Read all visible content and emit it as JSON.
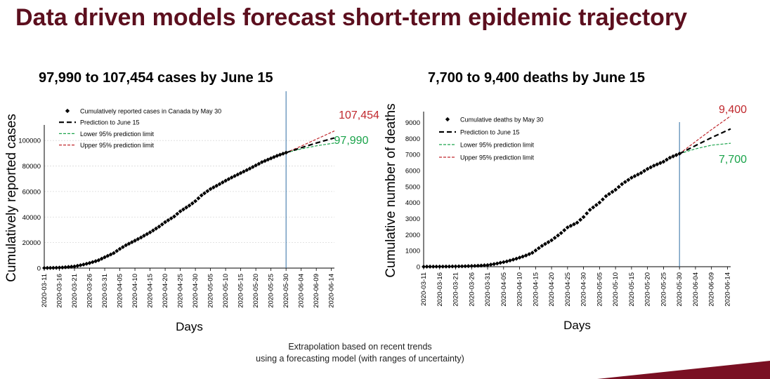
{
  "page": {
    "title": "Data driven models forecast short-term epidemic trajectory",
    "footnote_line1": "Extrapolation based on recent trends",
    "footnote_line2": "using a forecasting model (with ranges of uncertainty)"
  },
  "colors": {
    "title": "#5c0f1e",
    "observed": "#000000",
    "prediction": "#000000",
    "lower": "#1aa34a",
    "upper": "#c0282d",
    "divider": "#2e6da4",
    "accent_bar": "#7a1023"
  },
  "chart_data": [
    {
      "type": "scatter",
      "title": "97,990 to 107,454 cases by June 15",
      "xlabel": "Days",
      "ylabel": "Cumulatively reported cases",
      "ylim": [
        0,
        110000
      ],
      "yticks": [
        0,
        20000,
        40000,
        60000,
        80000,
        100000
      ],
      "x_ticks": [
        "2020-03-11",
        "2020-03-16",
        "2020-03-21",
        "2020-03-26",
        "2020-03-31",
        "2020-04-05",
        "2020-04-10",
        "2020-04-15",
        "2020-04-20",
        "2020-04-25",
        "2020-04-30",
        "2020-05-05",
        "2020-05-10",
        "2020-05-15",
        "2020-05-20",
        "2020-05-25",
        "2020-05-30",
        "2020-06-04",
        "2020-06-09",
        "2020-06-14"
      ],
      "x_start": "2020-03-11",
      "x_end": "2020-06-15",
      "forecast_start": "2020-05-30",
      "grid": true,
      "legend_position": "top-left",
      "legend": [
        "Cumulatively reported cases in Canada by May 30",
        "Prediction to June 15",
        "Lower 95% prediction limit",
        "Upper 95% prediction limit"
      ],
      "observed_points": [
        [
          "2020-03-11",
          100
        ],
        [
          "2020-03-14",
          200
        ],
        [
          "2020-03-17",
          500
        ],
        [
          "2020-03-21",
          1300
        ],
        [
          "2020-03-24",
          2800
        ],
        [
          "2020-03-26",
          4000
        ],
        [
          "2020-03-29",
          6200
        ],
        [
          "2020-03-31",
          8500
        ],
        [
          "2020-04-03",
          11800
        ],
        [
          "2020-04-05",
          15000
        ],
        [
          "2020-04-07",
          17900
        ],
        [
          "2020-04-10",
          21500
        ],
        [
          "2020-04-12",
          24000
        ],
        [
          "2020-04-15",
          28000
        ],
        [
          "2020-04-18",
          32500
        ],
        [
          "2020-04-20",
          36000
        ],
        [
          "2020-04-23",
          40500
        ],
        [
          "2020-04-25",
          44500
        ],
        [
          "2020-04-28",
          49000
        ],
        [
          "2020-04-30",
          52500
        ],
        [
          "2020-05-02",
          57000
        ],
        [
          "2020-05-05",
          62000
        ],
        [
          "2020-05-07",
          64500
        ],
        [
          "2020-05-10",
          68500
        ],
        [
          "2020-05-12",
          71000
        ],
        [
          "2020-05-15",
          74500
        ],
        [
          "2020-05-18",
          78000
        ],
        [
          "2020-05-20",
          80500
        ],
        [
          "2020-05-22",
          83000
        ],
        [
          "2020-05-25",
          86000
        ],
        [
          "2020-05-27",
          88000
        ],
        [
          "2020-05-30",
          90500
        ]
      ],
      "prediction": [
        [
          "2020-05-30",
          90500
        ],
        [
          "2020-06-04",
          94300
        ],
        [
          "2020-06-09",
          98000
        ],
        [
          "2020-06-15",
          102000
        ]
      ],
      "lower": [
        [
          "2020-05-30",
          90500
        ],
        [
          "2020-06-04",
          93400
        ],
        [
          "2020-06-09",
          95800
        ],
        [
          "2020-06-15",
          97990
        ]
      ],
      "upper": [
        [
          "2020-05-30",
          90500
        ],
        [
          "2020-06-04",
          95600
        ],
        [
          "2020-06-09",
          101000
        ],
        [
          "2020-06-15",
          107454
        ]
      ],
      "annotations": {
        "upper": "107,454",
        "lower": "97,990"
      }
    },
    {
      "type": "scatter",
      "title": "7,700 to 9,400 deaths by June 15",
      "xlabel": "Days",
      "ylabel": "Cumulative number of deaths",
      "ylim": [
        0,
        9500
      ],
      "yticks": [
        0,
        1000,
        2000,
        3000,
        4000,
        5000,
        6000,
        7000,
        8000,
        9000
      ],
      "x_ticks": [
        "2020-03-11",
        "2020-03-16",
        "2020-03-21",
        "2020-03-26",
        "2020-03-31",
        "2020-04-05",
        "2020-04-10",
        "2020-04-15",
        "2020-04-20",
        "2020-04-25",
        "2020-04-30",
        "2020-05-05",
        "2020-05-10",
        "2020-05-15",
        "2020-05-20",
        "2020-05-25",
        "2020-05-30",
        "2020-06-04",
        "2020-06-09",
        "2020-06-14"
      ],
      "x_start": "2020-03-11",
      "x_end": "2020-06-15",
      "forecast_start": "2020-05-30",
      "grid": false,
      "legend_position": "top-left",
      "legend": [
        "Cumulative deaths by May 30",
        "Prediction to June 15",
        "Lower 95% prediction limit",
        "Upper 95% prediction limit"
      ],
      "observed_points": [
        [
          "2020-03-11",
          2
        ],
        [
          "2020-03-18",
          10
        ],
        [
          "2020-03-24",
          30
        ],
        [
          "2020-03-28",
          60
        ],
        [
          "2020-03-31",
          100
        ],
        [
          "2020-04-03",
          200
        ],
        [
          "2020-04-06",
          330
        ],
        [
          "2020-04-09",
          500
        ],
        [
          "2020-04-12",
          700
        ],
        [
          "2020-04-14",
          870
        ],
        [
          "2020-04-17",
          1300
        ],
        [
          "2020-04-20",
          1650
        ],
        [
          "2020-04-23",
          2100
        ],
        [
          "2020-04-25",
          2450
        ],
        [
          "2020-04-28",
          2750
        ],
        [
          "2020-04-30",
          3100
        ],
        [
          "2020-05-02",
          3550
        ],
        [
          "2020-05-05",
          4000
        ],
        [
          "2020-05-07",
          4400
        ],
        [
          "2020-05-10",
          4800
        ],
        [
          "2020-05-12",
          5150
        ],
        [
          "2020-05-15",
          5550
        ],
        [
          "2020-05-18",
          5850
        ],
        [
          "2020-05-20",
          6100
        ],
        [
          "2020-05-22",
          6300
        ],
        [
          "2020-05-25",
          6550
        ],
        [
          "2020-05-27",
          6800
        ],
        [
          "2020-05-30",
          7050
        ]
      ],
      "prediction": [
        [
          "2020-05-30",
          7050
        ],
        [
          "2020-06-04",
          7550
        ],
        [
          "2020-06-09",
          8050
        ],
        [
          "2020-06-15",
          8600
        ]
      ],
      "lower": [
        [
          "2020-05-30",
          7050
        ],
        [
          "2020-06-04",
          7350
        ],
        [
          "2020-06-09",
          7580
        ],
        [
          "2020-06-15",
          7700
        ]
      ],
      "upper": [
        [
          "2020-05-30",
          7050
        ],
        [
          "2020-06-04",
          7800
        ],
        [
          "2020-06-09",
          8550
        ],
        [
          "2020-06-15",
          9400
        ]
      ],
      "annotations": {
        "upper": "9,400",
        "lower": "7,700"
      }
    }
  ]
}
